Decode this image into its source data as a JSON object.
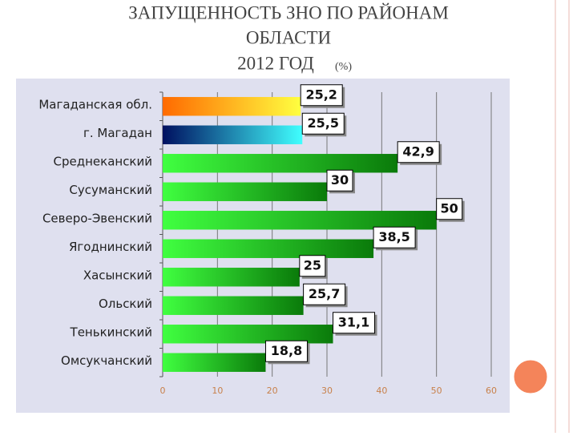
{
  "chart_data": {
    "type": "bar",
    "orientation": "horizontal",
    "title": [
      "ЗАПУЩЕННОСТЬ ЗНО ПО РАЙОНАМ",
      "ОБЛАСТИ",
      "2012 ГОД"
    ],
    "title_unit": "(%)",
    "categories": [
      "Магаданская обл.",
      "г. Магадан",
      "Среднеканский",
      "Сусуманский",
      "Северо-Эвенский",
      "Ягоднинский",
      "Хасынский",
      "Ольский",
      "Тенькинский",
      "Омсукчанский"
    ],
    "values": [
      25.2,
      25.5,
      42.9,
      30,
      50,
      38.5,
      25,
      25.7,
      31.1,
      18.8
    ],
    "value_labels": [
      "25,2",
      "25,5",
      "42,9",
      "30",
      "50",
      "38,5",
      "25",
      "25,7",
      "31,1",
      "18,8"
    ],
    "bar_colors": [
      [
        "#ff6a00",
        "#ffff40"
      ],
      [
        "#001060",
        "#40ffff"
      ],
      [
        "#40ff40",
        "#0a7a0a"
      ],
      [
        "#40ff40",
        "#0a7a0a"
      ],
      [
        "#40ff40",
        "#0a7a0a"
      ],
      [
        "#40ff40",
        "#0a7a0a"
      ],
      [
        "#40ff40",
        "#0a7a0a"
      ],
      [
        "#40ff40",
        "#0a7a0a"
      ],
      [
        "#40ff40",
        "#0a7a0a"
      ],
      [
        "#40ff40",
        "#0a7a0a"
      ]
    ],
    "xlim": [
      0,
      60
    ],
    "xticks": [
      0,
      10,
      20,
      30,
      40,
      50,
      60
    ],
    "grid": true
  }
}
